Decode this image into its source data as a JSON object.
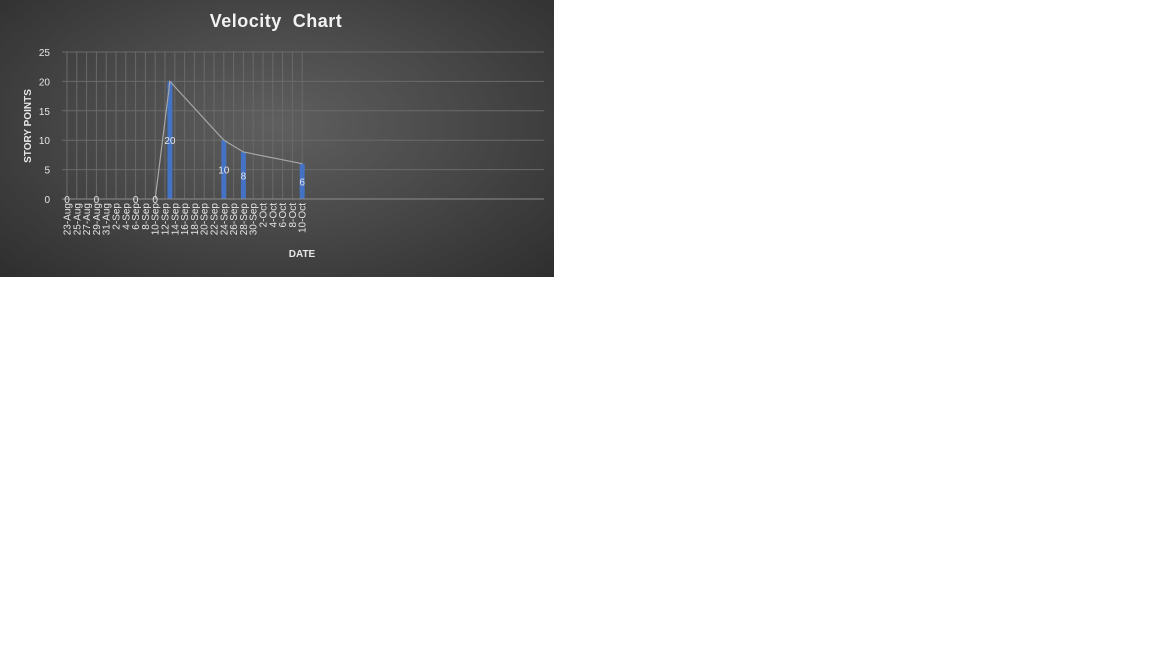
{
  "chart_data": {
    "type": "bar",
    "title": "Velocity  Chart",
    "xlabel": "DATE",
    "ylabel": "STORY POINTS",
    "ylim": [
      0,
      25
    ],
    "yticks": [
      0,
      5,
      10,
      15,
      20,
      25
    ],
    "grid": true,
    "legend": "none",
    "categories": [
      "23-Aug",
      "25-Aug",
      "27-Aug",
      "29-Aug",
      "31-Aug",
      "2-Sep",
      "4-Sep",
      "6-Sep",
      "8-Sep",
      "10-Sep",
      "12-Sep",
      "14-Sep",
      "16-Sep",
      "18-Sep",
      "20-Sep",
      "22-Sep",
      "24-Sep",
      "26-Sep",
      "28-Sep",
      "30-Sep",
      "2-Oct",
      "4-Oct",
      "6-Oct",
      "8-Oct",
      "10-Oct"
    ],
    "points": [
      {
        "date": "23-Aug",
        "value": 0
      },
      {
        "date": "29-Aug",
        "value": 0
      },
      {
        "date": "6-Sep",
        "value": 0
      },
      {
        "date": "10-Sep",
        "value": 0
      },
      {
        "date": "13-Sep",
        "value": 20
      },
      {
        "date": "24-Sep",
        "value": 10
      },
      {
        "date": "28-Sep",
        "value": 8
      },
      {
        "date": "10-Oct",
        "value": 6
      }
    ],
    "line_from": "10-Sep",
    "colors": {
      "bar": "#4472c4",
      "line": "#a6a6a6",
      "text": "#e6e6e6",
      "grid": "#6a6a6a"
    }
  }
}
